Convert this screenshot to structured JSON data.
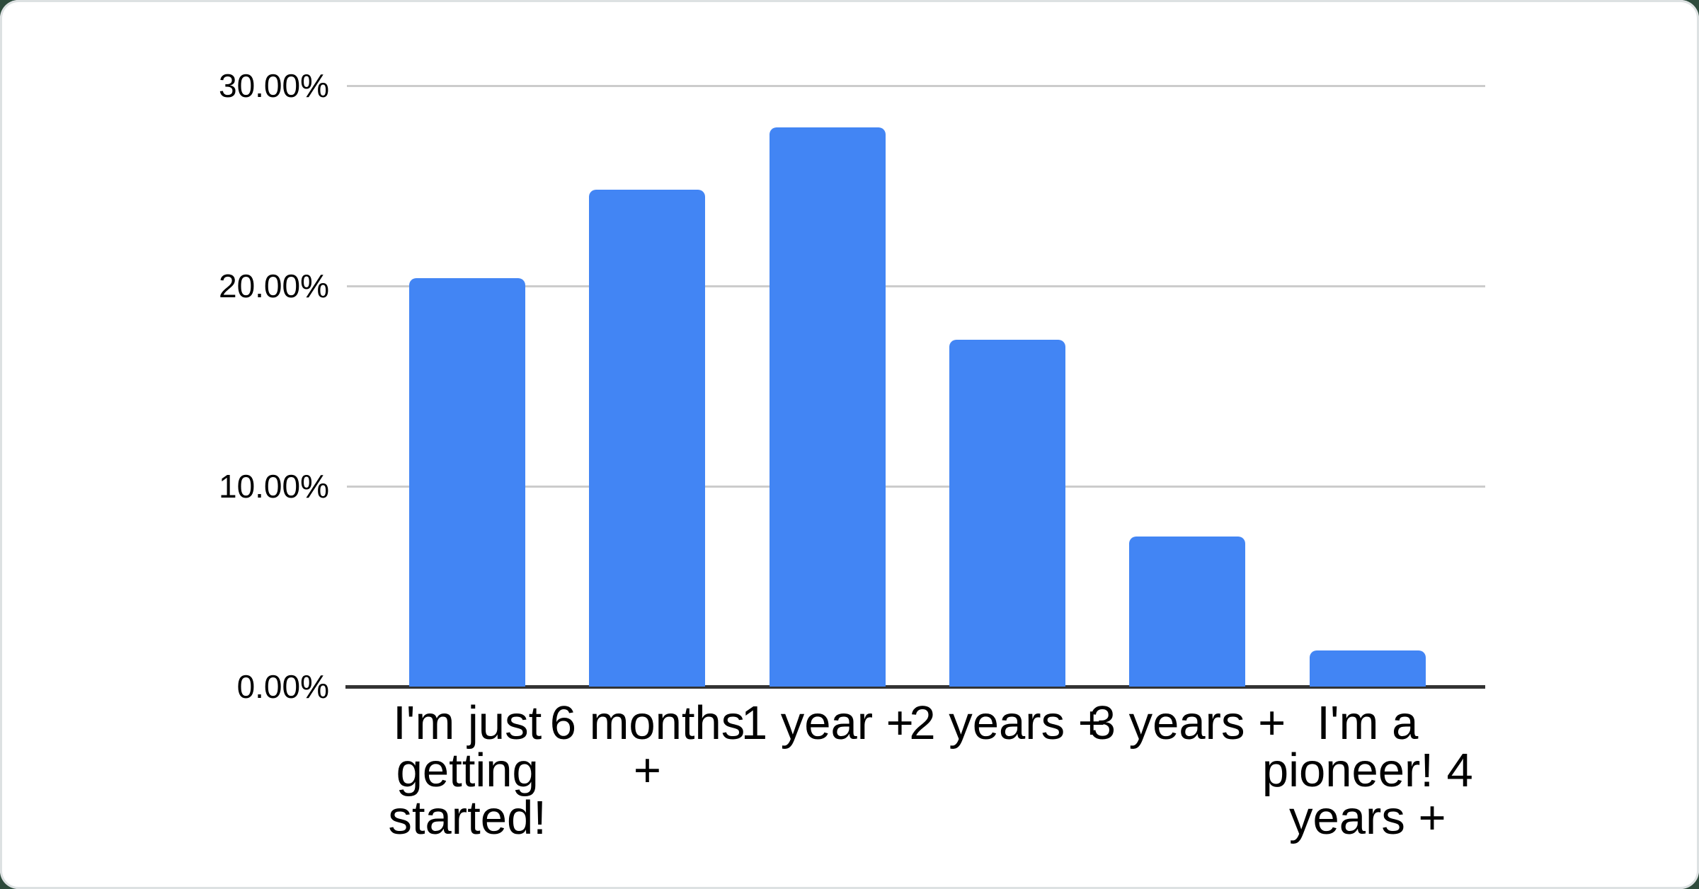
{
  "page": {
    "background_color": "#2e4b3c",
    "card_color": "#ffffff",
    "card_border_color": "#dde1e2"
  },
  "chart_data": {
    "type": "bar",
    "title": "",
    "xlabel": "",
    "ylabel": "",
    "categories": [
      "I'm just getting started!",
      "6 months +",
      "1 year +",
      "2 years +",
      "3 years +",
      "I'm a pioneer! 4 years +"
    ],
    "values": [
      20.4,
      24.8,
      27.9,
      17.3,
      7.5,
      1.8
    ],
    "value_unit": "%",
    "ylim": [
      0,
      30
    ],
    "y_ticks": [
      {
        "label": "0.00%",
        "value": 0
      },
      {
        "label": "10.00%",
        "value": 10
      },
      {
        "label": "20.00%",
        "value": 20
      },
      {
        "label": "30.00%",
        "value": 30
      }
    ],
    "grid": true,
    "legend_position": "none",
    "bar_color": "#4285f4",
    "gridline_color": "#cccccc",
    "axis_line_color": "#333333",
    "tick_label_color": "#000000"
  }
}
